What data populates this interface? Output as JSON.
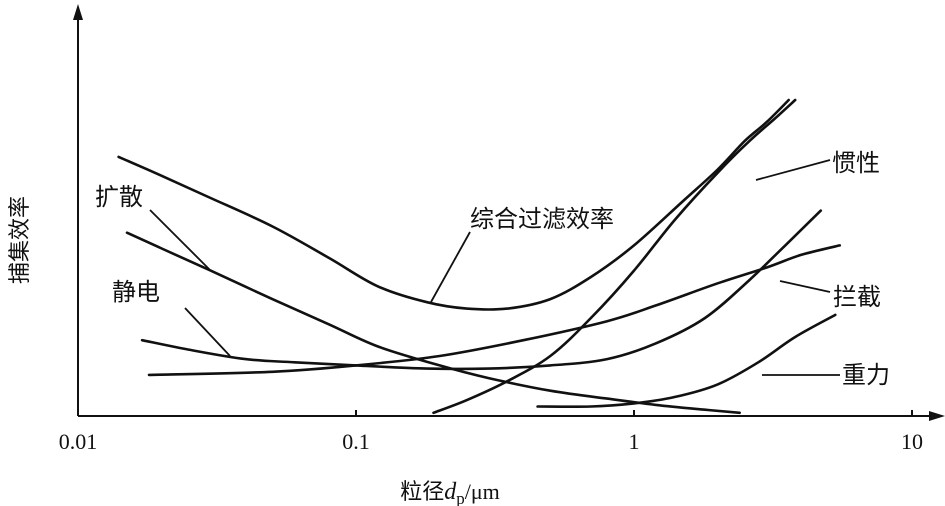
{
  "chart_data": {
    "type": "line",
    "xlabel_parts": {
      "prefix": "粒径",
      "var": "d",
      "sub": "p",
      "unit": "/μm"
    },
    "ylabel": "捕集效率",
    "x_scale": "log",
    "xlim": [
      0.01,
      10
    ],
    "ylim": [
      0,
      100
    ],
    "x_ticks": [
      {
        "value": 0.01,
        "label": "0.01"
      },
      {
        "value": 0.1,
        "label": "0.1"
      },
      {
        "value": 1,
        "label": "1"
      },
      {
        "value": 10,
        "label": "10"
      }
    ],
    "grid": false,
    "series": [
      {
        "name": "综合过滤效率",
        "x": [
          0.014,
          0.02,
          0.03,
          0.05,
          0.08,
          0.12,
          0.18,
          0.25,
          0.35,
          0.5,
          0.7,
          1.0,
          1.5,
          2.0,
          2.5,
          3.0,
          3.6
        ],
        "y": [
          82,
          76,
          69,
          60,
          50,
          41,
          36,
          34,
          34,
          37,
          44,
          54,
          68,
          78,
          87,
          93,
          100
        ]
      },
      {
        "name": "扩散",
        "x": [
          0.015,
          0.02,
          0.03,
          0.05,
          0.08,
          0.12,
          0.2,
          0.3,
          0.5,
          0.8,
          1.2,
          1.8,
          2.4
        ],
        "y": [
          58,
          53,
          46,
          37,
          29,
          22,
          16,
          12,
          8,
          5.5,
          3.5,
          2,
          1
        ]
      },
      {
        "name": "惯性",
        "x": [
          0.19,
          0.25,
          0.35,
          0.5,
          0.7,
          1.0,
          1.4,
          2.0,
          2.6,
          3.2,
          3.8
        ],
        "y": [
          1,
          5,
          11,
          19,
          31,
          46,
          62,
          77,
          87,
          94,
          100
        ]
      },
      {
        "name": "静电",
        "x": [
          0.017,
          0.025,
          0.04,
          0.06,
          0.1,
          0.18,
          0.3,
          0.5,
          0.8,
          1.2,
          1.8,
          2.6,
          3.5,
          4.7
        ],
        "y": [
          24,
          21,
          18,
          17,
          16,
          15,
          15,
          16,
          18,
          23,
          31,
          43,
          54,
          65
        ]
      },
      {
        "name": "拦截",
        "x": [
          0.018,
          0.05,
          0.1,
          0.2,
          0.4,
          0.8,
          1.2,
          2.0,
          3.0,
          4.0,
          5.5
        ],
        "y": [
          13,
          14,
          16,
          19,
          24,
          30,
          35,
          42,
          47,
          51,
          54
        ]
      },
      {
        "name": "重力",
        "x": [
          0.45,
          0.7,
          1.0,
          1.4,
          2.0,
          2.8,
          3.8,
          5.3
        ],
        "y": [
          3,
          3,
          4,
          6,
          10,
          17,
          25,
          32
        ]
      }
    ]
  }
}
